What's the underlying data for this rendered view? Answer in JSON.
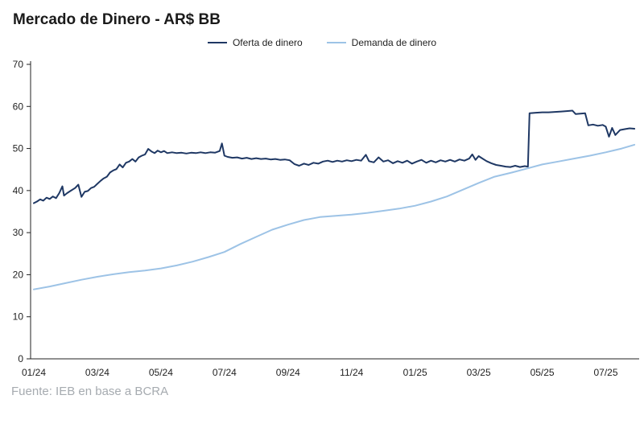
{
  "chart": {
    "title": "Mercado de Dinero - AR$ BB",
    "source": "Fuente: IEB en base a BCRA",
    "legend": [
      "Oferta de dinero",
      "Demanda de dinero"
    ]
  },
  "chart_data": {
    "type": "line",
    "title": "Mercado de Dinero - AR$ BB",
    "xlabel": "",
    "ylabel": "",
    "ylim": [
      0,
      70
    ],
    "xlim": [
      0,
      19
    ],
    "grid": false,
    "legend_position": "top-center",
    "source": "Fuente: IEB en base a BCRA",
    "axis_color": "#222222",
    "y_ticks": [
      0,
      10,
      20,
      30,
      40,
      50,
      60,
      70
    ],
    "x_ticks": [
      {
        "x": 0,
        "label": "01/24"
      },
      {
        "x": 2,
        "label": "03/24"
      },
      {
        "x": 4,
        "label": "05/24"
      },
      {
        "x": 6,
        "label": "07/24"
      },
      {
        "x": 8,
        "label": "09/24"
      },
      {
        "x": 10,
        "label": "11/24"
      },
      {
        "x": 12,
        "label": "01/25"
      },
      {
        "x": 14,
        "label": "03/25"
      },
      {
        "x": 16,
        "label": "05/25"
      },
      {
        "x": 18,
        "label": "07/25"
      }
    ],
    "series": [
      {
        "name": "Oferta de dinero",
        "color": "#1F3864",
        "width": 2,
        "points": [
          [
            0,
            37.0
          ],
          [
            0.1,
            37.4
          ],
          [
            0.2,
            37.9
          ],
          [
            0.3,
            37.6
          ],
          [
            0.4,
            38.3
          ],
          [
            0.5,
            38.0
          ],
          [
            0.6,
            38.6
          ],
          [
            0.7,
            38.2
          ],
          [
            0.8,
            39.4
          ],
          [
            0.9,
            41.0
          ],
          [
            0.95,
            38.8
          ],
          [
            1.05,
            39.4
          ],
          [
            1.15,
            39.9
          ],
          [
            1.3,
            40.6
          ],
          [
            1.4,
            41.4
          ],
          [
            1.5,
            38.5
          ],
          [
            1.6,
            39.7
          ],
          [
            1.7,
            39.9
          ],
          [
            1.8,
            40.6
          ],
          [
            1.9,
            40.9
          ],
          [
            2.0,
            41.6
          ],
          [
            2.1,
            42.3
          ],
          [
            2.2,
            42.9
          ],
          [
            2.3,
            43.3
          ],
          [
            2.4,
            44.3
          ],
          [
            2.5,
            44.8
          ],
          [
            2.6,
            45.1
          ],
          [
            2.7,
            46.2
          ],
          [
            2.8,
            45.5
          ],
          [
            2.9,
            46.6
          ],
          [
            3.0,
            46.9
          ],
          [
            3.1,
            47.5
          ],
          [
            3.2,
            46.9
          ],
          [
            3.3,
            47.9
          ],
          [
            3.4,
            48.3
          ],
          [
            3.5,
            48.6
          ],
          [
            3.6,
            49.9
          ],
          [
            3.7,
            49.3
          ],
          [
            3.8,
            48.9
          ],
          [
            3.9,
            49.5
          ],
          [
            4.0,
            49.1
          ],
          [
            4.1,
            49.4
          ],
          [
            4.2,
            48.9
          ],
          [
            4.35,
            49.1
          ],
          [
            4.5,
            48.9
          ],
          [
            4.65,
            49.0
          ],
          [
            4.8,
            48.8
          ],
          [
            4.95,
            49.0
          ],
          [
            5.1,
            48.9
          ],
          [
            5.25,
            49.1
          ],
          [
            5.4,
            48.9
          ],
          [
            5.55,
            49.1
          ],
          [
            5.7,
            49.0
          ],
          [
            5.85,
            49.4
          ],
          [
            5.92,
            51.2
          ],
          [
            6.0,
            48.3
          ],
          [
            6.1,
            48.0
          ],
          [
            6.25,
            47.8
          ],
          [
            6.4,
            47.9
          ],
          [
            6.55,
            47.6
          ],
          [
            6.7,
            47.8
          ],
          [
            6.85,
            47.5
          ],
          [
            7.0,
            47.7
          ],
          [
            7.15,
            47.5
          ],
          [
            7.3,
            47.6
          ],
          [
            7.45,
            47.4
          ],
          [
            7.6,
            47.5
          ],
          [
            7.75,
            47.3
          ],
          [
            7.9,
            47.4
          ],
          [
            8.05,
            47.2
          ],
          [
            8.2,
            46.3
          ],
          [
            8.35,
            45.9
          ],
          [
            8.5,
            46.4
          ],
          [
            8.65,
            46.1
          ],
          [
            8.8,
            46.6
          ],
          [
            8.95,
            46.4
          ],
          [
            9.1,
            46.9
          ],
          [
            9.25,
            47.1
          ],
          [
            9.4,
            46.8
          ],
          [
            9.55,
            47.1
          ],
          [
            9.7,
            46.9
          ],
          [
            9.85,
            47.2
          ],
          [
            10.0,
            47.0
          ],
          [
            10.15,
            47.3
          ],
          [
            10.3,
            47.1
          ],
          [
            10.45,
            48.5
          ],
          [
            10.55,
            47.0
          ],
          [
            10.7,
            46.7
          ],
          [
            10.85,
            47.9
          ],
          [
            11.0,
            46.9
          ],
          [
            11.15,
            47.2
          ],
          [
            11.3,
            46.5
          ],
          [
            11.45,
            47.0
          ],
          [
            11.6,
            46.6
          ],
          [
            11.75,
            47.1
          ],
          [
            11.9,
            46.4
          ],
          [
            12.05,
            46.9
          ],
          [
            12.2,
            47.3
          ],
          [
            12.35,
            46.6
          ],
          [
            12.5,
            47.1
          ],
          [
            12.65,
            46.7
          ],
          [
            12.8,
            47.2
          ],
          [
            12.95,
            46.9
          ],
          [
            13.1,
            47.3
          ],
          [
            13.25,
            46.9
          ],
          [
            13.4,
            47.4
          ],
          [
            13.55,
            47.1
          ],
          [
            13.7,
            47.6
          ],
          [
            13.8,
            48.6
          ],
          [
            13.9,
            47.3
          ],
          [
            14.0,
            48.2
          ],
          [
            14.1,
            47.7
          ],
          [
            14.25,
            47.0
          ],
          [
            14.4,
            46.5
          ],
          [
            14.55,
            46.1
          ],
          [
            14.7,
            45.9
          ],
          [
            14.85,
            45.7
          ],
          [
            15.0,
            45.6
          ],
          [
            15.15,
            45.9
          ],
          [
            15.3,
            45.6
          ],
          [
            15.45,
            45.8
          ],
          [
            15.55,
            45.7
          ],
          [
            15.6,
            58.4
          ],
          [
            15.8,
            58.5
          ],
          [
            16.0,
            58.6
          ],
          [
            16.2,
            58.6
          ],
          [
            16.4,
            58.7
          ],
          [
            16.6,
            58.8
          ],
          [
            16.8,
            58.9
          ],
          [
            16.95,
            59.0
          ],
          [
            17.05,
            58.2
          ],
          [
            17.2,
            58.3
          ],
          [
            17.35,
            58.4
          ],
          [
            17.45,
            55.5
          ],
          [
            17.6,
            55.7
          ],
          [
            17.75,
            55.4
          ],
          [
            17.9,
            55.6
          ],
          [
            18.0,
            55.2
          ],
          [
            18.1,
            52.8
          ],
          [
            18.2,
            54.9
          ],
          [
            18.3,
            53.2
          ],
          [
            18.45,
            54.4
          ],
          [
            18.6,
            54.6
          ],
          [
            18.75,
            54.8
          ],
          [
            18.9,
            54.7
          ]
        ]
      },
      {
        "name": "Demanda de dinero",
        "color": "#9DC3E6",
        "width": 2,
        "points": [
          [
            0,
            16.5
          ],
          [
            0.5,
            17.2
          ],
          [
            1,
            18.0
          ],
          [
            1.5,
            18.8
          ],
          [
            2,
            19.5
          ],
          [
            2.5,
            20.1
          ],
          [
            3,
            20.6
          ],
          [
            3.5,
            21.0
          ],
          [
            4,
            21.5
          ],
          [
            4.5,
            22.2
          ],
          [
            5,
            23.1
          ],
          [
            5.5,
            24.2
          ],
          [
            6,
            25.4
          ],
          [
            6.5,
            27.3
          ],
          [
            7,
            29.0
          ],
          [
            7.5,
            30.7
          ],
          [
            8,
            31.9
          ],
          [
            8.5,
            33.0
          ],
          [
            9,
            33.7
          ],
          [
            9.5,
            34.0
          ],
          [
            10,
            34.3
          ],
          [
            10.5,
            34.7
          ],
          [
            11,
            35.2
          ],
          [
            11.5,
            35.7
          ],
          [
            12,
            36.4
          ],
          [
            12.5,
            37.4
          ],
          [
            13,
            38.6
          ],
          [
            13.5,
            40.2
          ],
          [
            14,
            41.8
          ],
          [
            14.5,
            43.3
          ],
          [
            15,
            44.2
          ],
          [
            15.5,
            45.2
          ],
          [
            16,
            46.2
          ],
          [
            16.5,
            46.9
          ],
          [
            17,
            47.6
          ],
          [
            17.5,
            48.3
          ],
          [
            18,
            49.1
          ],
          [
            18.5,
            50.0
          ],
          [
            18.9,
            50.9
          ]
        ]
      }
    ]
  }
}
